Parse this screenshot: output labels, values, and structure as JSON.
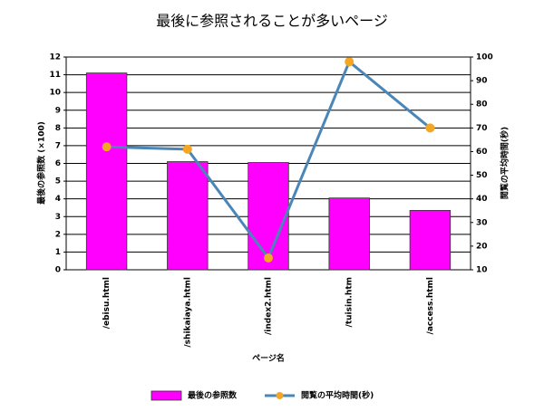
{
  "chart_data": {
    "type": "bar",
    "title": "最後に参照されることが多いページ",
    "x_label": "ページ名",
    "y_label": "最後の参照数 (×100)",
    "y2_label": "閲覧の平均時間(秒)",
    "categories": [
      "/ebisu.html",
      "/shikaiaya.html",
      "/index2.html",
      "/tuisin.htm",
      "/access.html"
    ],
    "series": [
      {
        "name": "最後の参照数",
        "type": "bar",
        "color": "#ff00ff",
        "values": [
          11.1,
          6.1,
          6.05,
          4.05,
          3.35
        ]
      },
      {
        "name": "閲覧の平均時間(秒)",
        "type": "line",
        "axis": "y2",
        "color": "#4a86b8",
        "marker_color": "#f5a623",
        "values": [
          62,
          61,
          15,
          98,
          70
        ]
      }
    ],
    "ylim": [
      0,
      12
    ],
    "yticks": [
      0,
      1,
      2,
      3,
      4,
      5,
      6,
      7,
      8,
      9,
      10,
      11,
      12
    ],
    "y2lim": [
      10,
      100
    ],
    "y2ticks": [
      10,
      20,
      30,
      40,
      50,
      60,
      70,
      80,
      90,
      100
    ],
    "grid": true,
    "legend": "bottom"
  }
}
